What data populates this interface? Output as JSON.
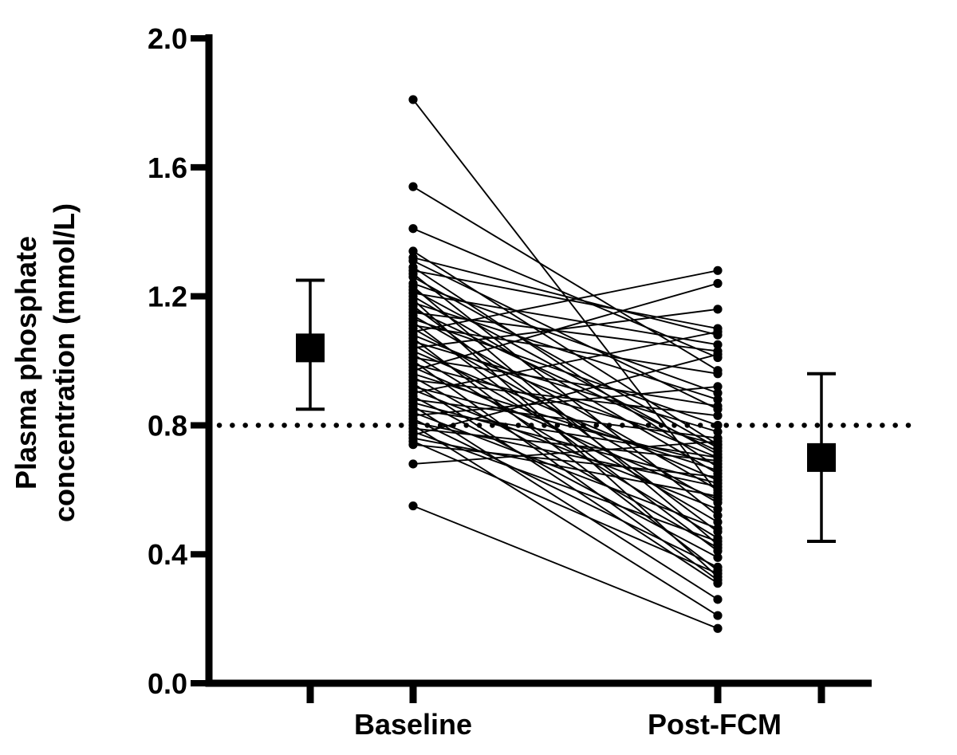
{
  "chart_data": {
    "type": "line",
    "subtype": "paired-before-after-scatter",
    "title": "",
    "ylabel_line1": "Plasma phosphate",
    "ylabel_line2": "concentration (mmol/L)",
    "xlabel": "",
    "categories": [
      "Baseline",
      "Post-FCM"
    ],
    "ylim": [
      0.0,
      2.0
    ],
    "yticks": [
      "0.0",
      "0.4",
      "0.8",
      "1.2",
      "1.6",
      "2.0"
    ],
    "grid": "off",
    "legend": "none",
    "reference_line_y": 0.8,
    "reference_line_style": "dotted",
    "marker_color": "#000000",
    "line_color": "#000000",
    "background_color": "#ffffff",
    "summary_markers": [
      {
        "group": "Baseline",
        "mean": 1.04,
        "upper": 1.25,
        "lower": 0.85,
        "marker": "filled-square"
      },
      {
        "group": "Post-FCM",
        "mean": 0.7,
        "upper": 0.96,
        "lower": 0.44,
        "marker": "filled-square"
      }
    ],
    "pairs": [
      [
        1.81,
        0.59
      ],
      [
        1.54,
        0.97
      ],
      [
        1.41,
        1.01
      ],
      [
        1.34,
        0.74
      ],
      [
        1.32,
        1.08
      ],
      [
        1.31,
        0.85
      ],
      [
        1.29,
        0.67
      ],
      [
        1.28,
        1.1
      ],
      [
        1.27,
        0.52
      ],
      [
        1.26,
        0.73
      ],
      [
        1.24,
        0.9
      ],
      [
        1.23,
        0.43
      ],
      [
        1.22,
        0.71
      ],
      [
        1.21,
        1.05
      ],
      [
        1.2,
        0.65
      ],
      [
        1.19,
        0.33
      ],
      [
        1.18,
        0.88
      ],
      [
        1.17,
        0.47
      ],
      [
        1.16,
        0.72
      ],
      [
        1.15,
        1.03
      ],
      [
        1.14,
        0.6
      ],
      [
        1.13,
        0.8
      ],
      [
        1.12,
        0.41
      ],
      [
        1.11,
        0.96
      ],
      [
        1.1,
        0.56
      ],
      [
        1.09,
        1.28
      ],
      [
        1.08,
        0.7
      ],
      [
        1.07,
        0.35
      ],
      [
        1.06,
        0.78
      ],
      [
        1.05,
        0.5
      ],
      [
        1.04,
        1.16
      ],
      [
        1.03,
        0.63
      ],
      [
        1.02,
        0.45
      ],
      [
        1.01,
        0.86
      ],
      [
        1.0,
        0.32
      ],
      [
        0.99,
        0.74
      ],
      [
        0.98,
        0.57
      ],
      [
        0.97,
        1.24
      ],
      [
        0.96,
        0.66
      ],
      [
        0.95,
        0.42
      ],
      [
        0.94,
        0.83
      ],
      [
        0.93,
        0.31
      ],
      [
        0.92,
        0.68
      ],
      [
        0.91,
        0.54
      ],
      [
        0.9,
        1.09
      ],
      [
        0.89,
        0.39
      ],
      [
        0.88,
        0.76
      ],
      [
        0.87,
        0.62
      ],
      [
        0.86,
        0.26
      ],
      [
        0.85,
        0.7
      ],
      [
        0.84,
        0.48
      ],
      [
        0.83,
        0.92
      ],
      [
        0.82,
        0.36
      ],
      [
        0.81,
        0.61
      ],
      [
        0.8,
        0.21
      ],
      [
        0.79,
        0.69
      ],
      [
        0.78,
        0.44
      ],
      [
        0.77,
        1.02
      ],
      [
        0.76,
        0.58
      ],
      [
        0.75,
        0.34
      ],
      [
        0.74,
        0.64
      ],
      [
        0.68,
        0.75
      ],
      [
        0.55,
        0.17
      ]
    ]
  }
}
